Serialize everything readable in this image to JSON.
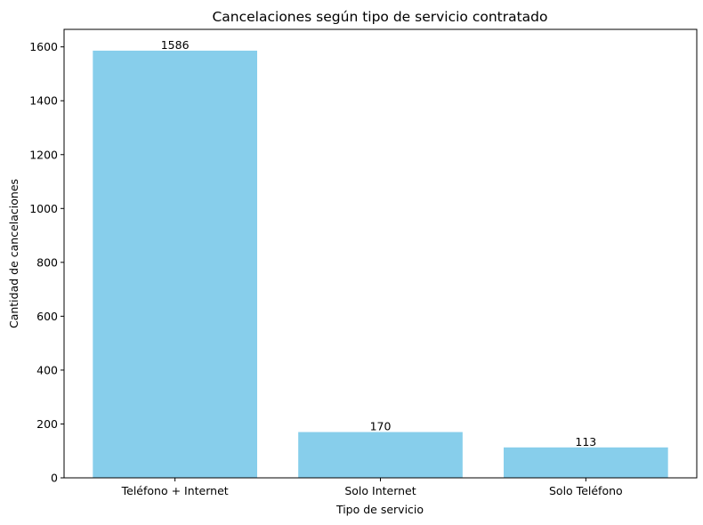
{
  "chart_data": {
    "type": "bar",
    "title": "Cancelaciones según tipo de servicio contratado",
    "xlabel": "Tipo de servicio",
    "ylabel": "Cantidad de cancelaciones",
    "categories": [
      "Teléfono + Internet",
      "Solo Internet",
      "Solo Teléfono"
    ],
    "values": [
      1586,
      170,
      113
    ],
    "data_labels": [
      "1586",
      "170",
      "113"
    ],
    "ylim": [
      0,
      1665
    ],
    "yticks": [
      0,
      200,
      400,
      600,
      800,
      1000,
      1200,
      1400,
      1600
    ],
    "bar_color": "#87CEEB",
    "grid": false,
    "legend": "none"
  }
}
